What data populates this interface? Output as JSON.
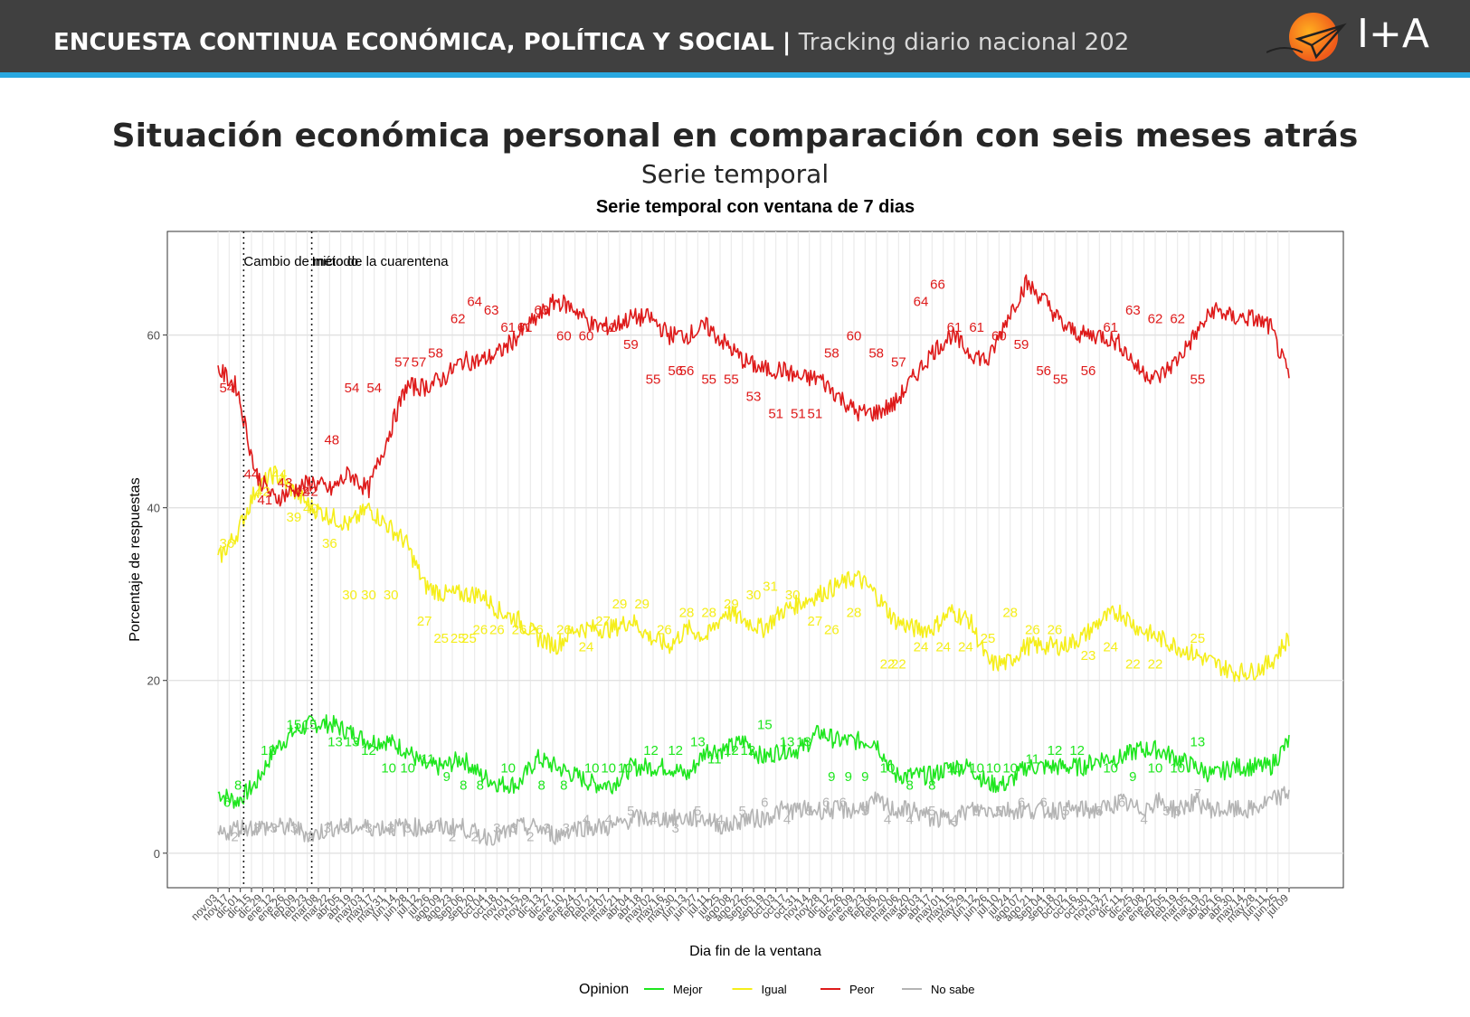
{
  "header": {
    "title_bold": "ENCUESTA CONTINUA ECONÓMICA, POLÍTICA Y SOCIAL |",
    "title_light": "Tracking diario nacional 202",
    "logo_text": "I+A"
  },
  "slide": {
    "title": "Situación económica personal en comparación con seis meses atrás",
    "subtitle": "Serie temporal"
  },
  "colors": {
    "header_bg": "#404040",
    "header_accent": "#29a8e0",
    "Mejor": "#1ee61e",
    "Igual": "#f5ee1a",
    "Peor": "#de1a1a",
    "No sabe": "#b4b4b4"
  },
  "chart_data": {
    "type": "line",
    "title": "Serie temporal con ventana de 7 dias",
    "xlabel": "Dia fin de la ventana",
    "ylabel": "Porcentaje de respuestas",
    "ylim": [
      -4,
      72
    ],
    "yticks": [
      0,
      20,
      40,
      60
    ],
    "grid": true,
    "legend_title": "Opinion",
    "legend_position": "bottom",
    "x_ticklabels": [
      "nov.03",
      "nov.17",
      "dic.01",
      "dic.15",
      "dic.29",
      "ene.12",
      "ene.26",
      "feb.09",
      "feb.23",
      "mar.08",
      "mar.22",
      "abr.05",
      "abr.19",
      "may.03",
      "may.17",
      "may.31",
      "jun.14",
      "jun.28",
      "jul.12",
      "jul.26",
      "ago.09",
      "ago.23",
      "sep.06",
      "sep.20",
      "oct.04",
      "oct.18",
      "nov.01",
      "nov.15",
      "nov.29",
      "dic.13",
      "dic.27",
      "ene.10",
      "ene.24",
      "feb.07",
      "feb.21",
      "mar.07",
      "mar.21",
      "abr.04",
      "abr.18",
      "may.02",
      "may.16",
      "may.30",
      "jun.13",
      "jun.27",
      "jul.11",
      "jul.25",
      "ago.08",
      "ago.22",
      "sep.05",
      "sep.19",
      "oct.03",
      "oct.17",
      "oct.31",
      "nov.14",
      "nov.28",
      "dic.12",
      "dic.26",
      "ene.09",
      "ene.23",
      "feb.06",
      "feb.20",
      "mar.06",
      "mar.20",
      "abr.03",
      "abr.17",
      "may.01",
      "may.15",
      "may.29",
      "jun.12",
      "jun.26",
      "jul.10",
      "jul.24",
      "ago.07",
      "ago.21",
      "sep.04",
      "sep.18",
      "oct.02",
      "oct.16",
      "oct.30",
      "nov.13",
      "nov.27",
      "dic.11",
      "dic.25",
      "ene.08",
      "ene.22",
      "feb.05",
      "feb.19",
      "mar.05",
      "mar.19",
      "abr.02",
      "abr.16",
      "abr.30",
      "may.14",
      "may.28",
      "jun.11",
      "jun.25",
      "jul.09"
    ],
    "annotations": [
      {
        "x": 2.3,
        "label": "Cambio de método"
      },
      {
        "x": 8.4,
        "label": "Inicio de la cuarentena"
      }
    ],
    "series": [
      {
        "name": "Mejor",
        "values": [
          7,
          6,
          8,
          12,
          14,
          15,
          15,
          14,
          13,
          13,
          12,
          10,
          10,
          11,
          9,
          8,
          8,
          11,
          10,
          9,
          8,
          8,
          10,
          10,
          10,
          9,
          12,
          12,
          13,
          11,
          12,
          12,
          14,
          13,
          13,
          13,
          9,
          9,
          9,
          10,
          10,
          8,
          8,
          10,
          10,
          10,
          10,
          11,
          11,
          12,
          12,
          11,
          10,
          9,
          10,
          10,
          10,
          13
        ],
        "point_labels": [
          [
            0.8,
            6
          ],
          [
            1.8,
            8
          ],
          [
            4.5,
            12
          ],
          [
            6.8,
            15
          ],
          [
            8.2,
            15
          ],
          [
            10.5,
            13
          ],
          [
            12,
            13
          ],
          [
            13.5,
            12
          ],
          [
            15.3,
            10
          ],
          [
            17,
            10
          ],
          [
            18.8,
            11
          ],
          [
            20.5,
            9
          ],
          [
            22,
            8
          ],
          [
            23.5,
            8
          ],
          [
            26,
            10
          ],
          [
            29,
            8
          ],
          [
            31,
            8
          ],
          [
            33.5,
            10
          ],
          [
            35,
            10
          ],
          [
            36.5,
            10
          ],
          [
            38.8,
            12
          ],
          [
            41,
            12
          ],
          [
            43,
            13
          ],
          [
            44.5,
            11
          ],
          [
            46,
            12
          ],
          [
            47.5,
            12
          ],
          [
            49,
            15
          ],
          [
            51,
            13
          ],
          [
            52.5,
            13
          ],
          [
            55,
            9
          ],
          [
            56.5,
            9
          ],
          [
            58,
            9
          ],
          [
            60,
            10
          ],
          [
            62,
            8
          ],
          [
            64,
            8
          ],
          [
            66,
            10
          ],
          [
            68,
            10
          ],
          [
            69.5,
            10
          ],
          [
            71,
            10
          ],
          [
            73,
            11
          ],
          [
            75,
            12
          ],
          [
            77,
            12
          ],
          [
            80,
            10
          ],
          [
            82,
            9
          ],
          [
            84,
            10
          ],
          [
            86,
            10
          ],
          [
            87.8,
            13
          ]
        ]
      },
      {
        "name": "Igual",
        "values": [
          34,
          37,
          42,
          44,
          42,
          40,
          39,
          38,
          40,
          38,
          36,
          31,
          30,
          30,
          30,
          28,
          27,
          25,
          24,
          26,
          26,
          26,
          27,
          25,
          24,
          26,
          25,
          28,
          27,
          26,
          28,
          29,
          30,
          31,
          32,
          30,
          27,
          26,
          26,
          28,
          27,
          22,
          22,
          24,
          24,
          24,
          25,
          27,
          28,
          26,
          25,
          24,
          23,
          22,
          21,
          21,
          22,
          25
        ],
        "point_labels": [
          [
            0.8,
            36
          ],
          [
            4,
            42
          ],
          [
            5.5,
            44
          ],
          [
            6.8,
            39
          ],
          [
            8.3,
            40
          ],
          [
            10,
            36
          ],
          [
            11.8,
            30
          ],
          [
            13.5,
            30
          ],
          [
            15.5,
            30
          ],
          [
            18.5,
            27
          ],
          [
            20,
            25
          ],
          [
            21.5,
            25
          ],
          [
            22.5,
            25
          ],
          [
            23.5,
            26
          ],
          [
            25,
            26
          ],
          [
            27,
            26
          ],
          [
            28.5,
            26
          ],
          [
            31,
            26
          ],
          [
            33,
            24
          ],
          [
            34.5,
            27
          ],
          [
            36,
            29
          ],
          [
            38,
            29
          ],
          [
            40,
            26
          ],
          [
            42,
            28
          ],
          [
            44,
            28
          ],
          [
            46,
            29
          ],
          [
            48,
            30
          ],
          [
            49.5,
            31
          ],
          [
            51.5,
            30
          ],
          [
            53.5,
            27
          ],
          [
            55,
            26
          ],
          [
            57,
            28
          ],
          [
            60,
            22
          ],
          [
            61,
            22
          ],
          [
            63,
            24
          ],
          [
            65,
            24
          ],
          [
            67,
            24
          ],
          [
            69,
            25
          ],
          [
            71,
            28
          ],
          [
            73,
            26
          ],
          [
            75,
            26
          ],
          [
            78,
            23
          ],
          [
            80,
            24
          ],
          [
            82,
            22
          ],
          [
            84,
            22
          ],
          [
            87.8,
            25
          ]
        ]
      },
      {
        "name": "Peor",
        "values": [
          56,
          54,
          44,
          41,
          42,
          43,
          42,
          44,
          42,
          48,
          54,
          54,
          55,
          57,
          57,
          58,
          60,
          62,
          64,
          63,
          61,
          61,
          62,
          62,
          60,
          60,
          61,
          59,
          57,
          56,
          56,
          55,
          55,
          53,
          51,
          51,
          52,
          55,
          58,
          60,
          58,
          57,
          62,
          66,
          64,
          61,
          60,
          60,
          59,
          56,
          55,
          57,
          60,
          63,
          62,
          62,
          61,
          55
        ],
        "point_labels": [
          [
            0.8,
            54
          ],
          [
            3,
            44
          ],
          [
            4.2,
            41
          ],
          [
            6,
            43
          ],
          [
            7.5,
            42
          ],
          [
            8.3,
            42
          ],
          [
            10.2,
            48
          ],
          [
            12,
            54
          ],
          [
            14,
            54
          ],
          [
            16.5,
            57
          ],
          [
            18,
            57
          ],
          [
            19.5,
            58
          ],
          [
            21.5,
            62
          ],
          [
            23,
            64
          ],
          [
            24.5,
            63
          ],
          [
            26,
            61
          ],
          [
            27.5,
            61
          ],
          [
            29,
            63
          ],
          [
            31,
            60
          ],
          [
            33,
            60
          ],
          [
            35,
            61
          ],
          [
            37,
            59
          ],
          [
            39,
            55
          ],
          [
            41,
            56
          ],
          [
            42,
            56
          ],
          [
            44,
            55
          ],
          [
            46,
            55
          ],
          [
            48,
            53
          ],
          [
            50,
            51
          ],
          [
            52,
            51
          ],
          [
            53.5,
            51
          ],
          [
            55,
            58
          ],
          [
            57,
            60
          ],
          [
            59,
            58
          ],
          [
            61,
            57
          ],
          [
            63,
            64
          ],
          [
            64.5,
            66
          ],
          [
            66,
            61
          ],
          [
            68,
            61
          ],
          [
            70,
            60
          ],
          [
            72,
            59
          ],
          [
            74,
            56
          ],
          [
            75.5,
            55
          ],
          [
            78,
            56
          ],
          [
            80,
            61
          ],
          [
            82,
            63
          ],
          [
            84,
            62
          ],
          [
            86,
            62
          ],
          [
            87.8,
            55
          ]
        ]
      },
      {
        "name": "No sabe",
        "values": [
          2,
          3,
          3,
          3,
          3,
          2,
          3,
          3,
          3,
          3,
          3,
          3,
          3,
          3,
          2,
          2,
          3,
          3,
          2,
          3,
          3,
          3,
          4,
          4,
          4,
          4,
          4,
          3,
          4,
          4,
          5,
          5,
          5,
          5,
          5,
          6,
          5,
          5,
          4,
          4,
          5,
          5,
          5,
          5,
          5,
          5,
          5,
          5,
          6,
          5,
          6,
          5,
          6,
          5,
          5,
          5,
          6,
          7
        ],
        "point_labels": [
          [
            1.5,
            2
          ],
          [
            3.5,
            3
          ],
          [
            5,
            3
          ],
          [
            6.8,
            3
          ],
          [
            8.3,
            2
          ],
          [
            9.8,
            3
          ],
          [
            11.5,
            3
          ],
          [
            13.5,
            3
          ],
          [
            15.5,
            3
          ],
          [
            17,
            3
          ],
          [
            19,
            3
          ],
          [
            21,
            2
          ],
          [
            23,
            2
          ],
          [
            25,
            3
          ],
          [
            26.5,
            3
          ],
          [
            28,
            2
          ],
          [
            29.5,
            3
          ],
          [
            31.2,
            3
          ],
          [
            33,
            4
          ],
          [
            35,
            4
          ],
          [
            37,
            5
          ],
          [
            39,
            4
          ],
          [
            41,
            3
          ],
          [
            43,
            5
          ],
          [
            45,
            4
          ],
          [
            47,
            5
          ],
          [
            49,
            6
          ],
          [
            51,
            4
          ],
          [
            53,
            5
          ],
          [
            54.5,
            6
          ],
          [
            56,
            6
          ],
          [
            58,
            5
          ],
          [
            60,
            4
          ],
          [
            62,
            4
          ],
          [
            64,
            5
          ],
          [
            66,
            4
          ],
          [
            68,
            5
          ],
          [
            70,
            5
          ],
          [
            72,
            6
          ],
          [
            74,
            6
          ],
          [
            76,
            5
          ],
          [
            79,
            5
          ],
          [
            81,
            6
          ],
          [
            83,
            4
          ],
          [
            85,
            5
          ],
          [
            86,
            5
          ],
          [
            87.8,
            7
          ]
        ]
      }
    ]
  }
}
